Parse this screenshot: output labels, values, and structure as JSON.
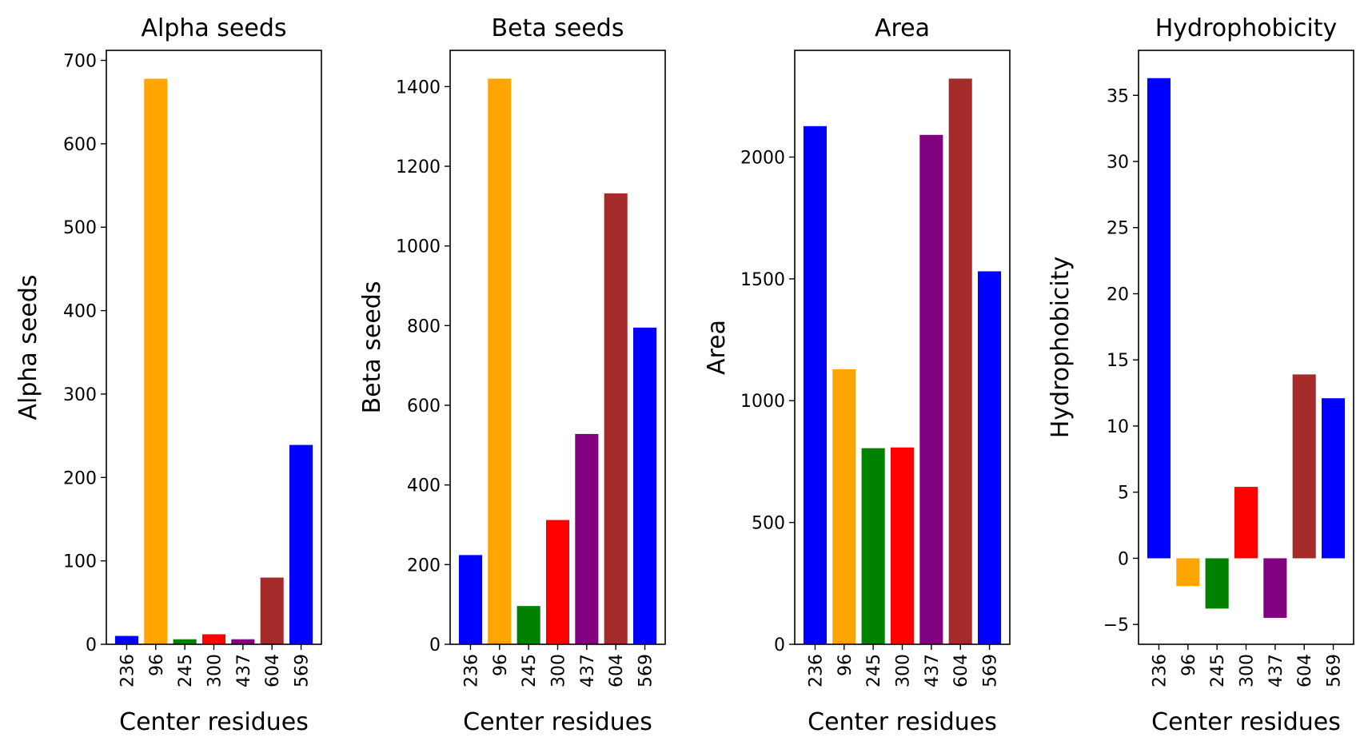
{
  "chart_data": [
    {
      "type": "bar",
      "title": "Alpha seeds",
      "xlabel": "Center residues",
      "ylabel": "Alpha seeds",
      "categories": [
        "236",
        "96",
        "245",
        "300",
        "437",
        "604",
        "569"
      ],
      "values": [
        10,
        678,
        6,
        12,
        6,
        80,
        239
      ],
      "colors": [
        "#0000ff",
        "#ffa500",
        "#008000",
        "#ff0000",
        "#800080",
        "#a52a2a",
        "#0000ff"
      ],
      "ylim": [
        0,
        712
      ],
      "yticks": [
        0,
        100,
        200,
        300,
        400,
        500,
        600,
        700
      ],
      "grid": false
    },
    {
      "type": "bar",
      "title": "Beta seeds",
      "xlabel": "Center residues",
      "ylabel": "Beta seeds",
      "categories": [
        "236",
        "96",
        "245",
        "300",
        "437",
        "604",
        "569"
      ],
      "values": [
        224,
        1420,
        96,
        312,
        528,
        1132,
        795
      ],
      "colors": [
        "#0000ff",
        "#ffa500",
        "#008000",
        "#ff0000",
        "#800080",
        "#a52a2a",
        "#0000ff"
      ],
      "ylim": [
        0,
        1491
      ],
      "yticks": [
        0,
        200,
        400,
        600,
        800,
        1000,
        1200,
        1400
      ],
      "grid": false
    },
    {
      "type": "bar",
      "title": "Area",
      "xlabel": "Center residues",
      "ylabel": "Area",
      "categories": [
        "236",
        "96",
        "245",
        "300",
        "437",
        "604",
        "569"
      ],
      "values": [
        2127,
        1129,
        805,
        808,
        2091,
        2322,
        1531
      ],
      "colors": [
        "#0000ff",
        "#ffa500",
        "#008000",
        "#ff0000",
        "#800080",
        "#a52a2a",
        "#0000ff"
      ],
      "ylim": [
        0,
        2438
      ],
      "yticks": [
        0,
        500,
        1000,
        1500,
        2000
      ],
      "grid": false
    },
    {
      "type": "bar",
      "title": "Hydrophobicity",
      "xlabel": "Center residues",
      "ylabel": "Hydrophobicity",
      "categories": [
        "236",
        "96",
        "245",
        "300",
        "437",
        "604",
        "569"
      ],
      "values": [
        36.3,
        -2.1,
        -3.8,
        5.4,
        -4.5,
        13.9,
        12.1
      ],
      "colors": [
        "#0000ff",
        "#ffa500",
        "#008000",
        "#ff0000",
        "#800080",
        "#a52a2a",
        "#0000ff"
      ],
      "ylim": [
        -6.5,
        38.4
      ],
      "yticks": [
        -5,
        0,
        5,
        10,
        15,
        20,
        25,
        30,
        35
      ],
      "ytick_labels": [
        "−5",
        "0",
        "5",
        "10",
        "15",
        "20",
        "25",
        "30",
        "35"
      ],
      "grid": false
    }
  ]
}
